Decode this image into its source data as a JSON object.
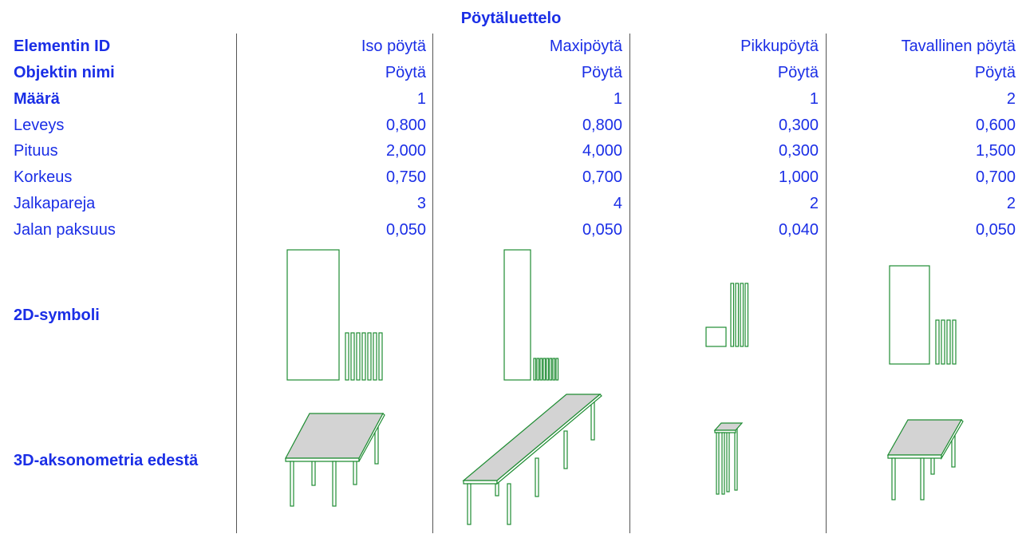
{
  "title": "Pöytäluettelo",
  "row_labels": [
    {
      "text": "Elementin ID",
      "bold": true
    },
    {
      "text": "Objektin nimi",
      "bold": true
    },
    {
      "text": "Määrä",
      "bold": true
    },
    {
      "text": "Leveys",
      "bold": false
    },
    {
      "text": "Pituus",
      "bold": false
    },
    {
      "text": "Korkeus",
      "bold": false
    },
    {
      "text": "Jalkapareja",
      "bold": false
    },
    {
      "text": "Jalan paksuus",
      "bold": false
    }
  ],
  "symbol_label": "2D-symboli",
  "axon_label": "3D-aksonometria edestä",
  "columns": [
    {
      "values": [
        "Iso pöytä",
        "Pöytä",
        "1",
        "0,800",
        "2,000",
        "0,750",
        "3",
        "0,050"
      ]
    },
    {
      "values": [
        "Maxipöytä",
        "Pöytä",
        "1",
        "0,800",
        "4,000",
        "0,700",
        "4",
        "0,050"
      ]
    },
    {
      "values": [
        "Pikkupöytä",
        "Pöytä",
        "1",
        "0,300",
        "0,300",
        "1,000",
        "2",
        "0,040"
      ]
    },
    {
      "values": [
        "Tavallinen pöytä",
        "Pöytä",
        "2",
        "0,600",
        "1,500",
        "0,700",
        "2",
        "0,050"
      ]
    }
  ],
  "colors": {
    "text": "#1a2ee6",
    "line": "#1e8c32",
    "table_top_fill": "#d3d3d3",
    "divider": "#555555"
  }
}
